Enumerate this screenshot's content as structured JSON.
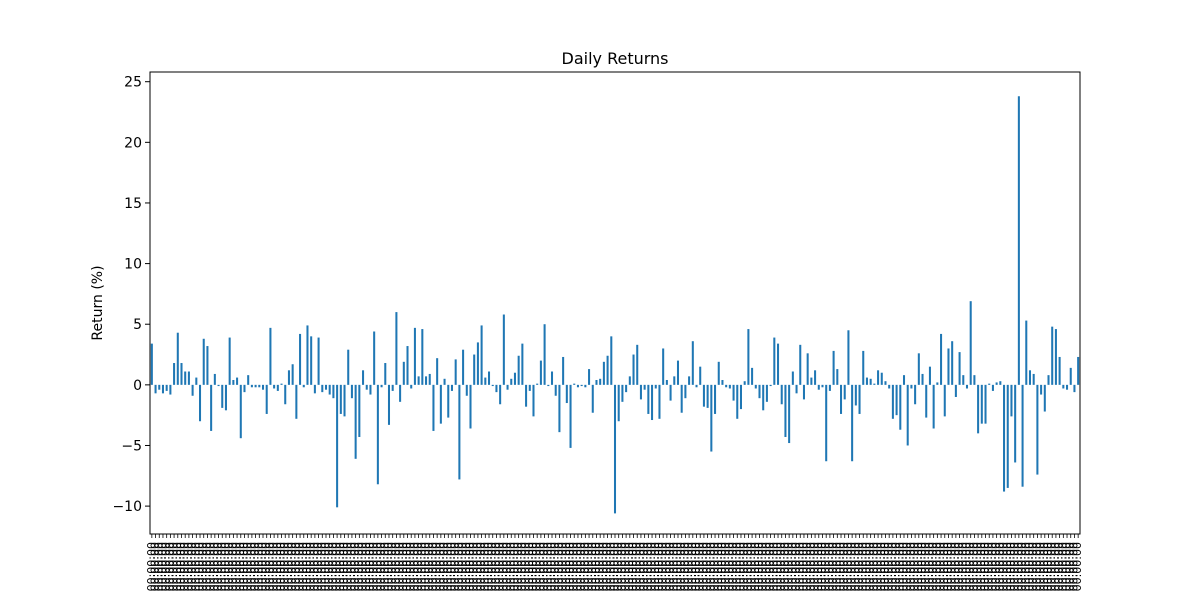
{
  "chart_data": {
    "type": "bar",
    "title": "Daily Returns",
    "xlabel": "",
    "ylabel": "Return (%)",
    "ylim": [
      -12.3,
      25.8
    ],
    "yticks": [
      -10,
      -5,
      0,
      5,
      10,
      15,
      20,
      25
    ],
    "grid": false,
    "bar_color": "#1f77b4",
    "x_tick_label_pattern": "00:00:00",
    "values": [
      3.4,
      -0.7,
      -0.4,
      -0.7,
      -0.5,
      -0.8,
      1.8,
      4.3,
      1.8,
      1.1,
      1.1,
      -0.9,
      0.6,
      -3.0,
      3.8,
      3.2,
      -3.8,
      0.9,
      -0.1,
      -1.9,
      -2.1,
      3.9,
      0.4,
      0.6,
      -4.4,
      -0.6,
      0.8,
      -0.2,
      -0.2,
      -0.2,
      -0.4,
      -2.4,
      4.7,
      -0.3,
      -0.5,
      0.1,
      -1.6,
      1.2,
      1.7,
      -2.8,
      4.2,
      -0.2,
      4.9,
      4.0,
      -0.7,
      3.9,
      -0.6,
      -0.4,
      -0.8,
      -1.1,
      -10.1,
      -2.4,
      -2.6,
      2.9,
      -1.1,
      -6.1,
      -4.3,
      1.2,
      -0.4,
      -0.8,
      4.4,
      -8.2,
      -0.2,
      1.8,
      -3.3,
      -0.5,
      6.0,
      -1.4,
      1.9,
      3.2,
      -0.3,
      4.7,
      0.7,
      4.6,
      0.7,
      0.9,
      -3.8,
      2.2,
      -3.2,
      0.5,
      -2.7,
      -0.5,
      2.1,
      -7.8,
      2.9,
      -0.9,
      -3.6,
      2.5,
      3.5,
      4.9,
      0.6,
      1.1,
      -0.1,
      -0.6,
      -1.6,
      5.8,
      -0.4,
      0.5,
      1.0,
      2.4,
      3.4,
      -1.8,
      -0.5,
      -2.6,
      0.1,
      2.0,
      5.0,
      -0.1,
      1.1,
      -0.9,
      -3.9,
      2.3,
      -1.5,
      -5.2,
      0.1,
      -0.2,
      -0.1,
      -0.2,
      1.3,
      -2.3,
      0.4,
      0.5,
      1.9,
      2.4,
      4.0,
      -10.6,
      -3.0,
      -1.4,
      -0.6,
      0.7,
      2.5,
      3.3,
      -1.2,
      -0.4,
      -2.4,
      -2.9,
      -0.3,
      -2.8,
      3.0,
      0.4,
      -1.3,
      0.7,
      2.0,
      -2.3,
      -1.1,
      0.7,
      3.6,
      -0.2,
      1.5,
      -1.8,
      -1.9,
      -5.5,
      -2.4,
      1.9,
      0.4,
      -0.2,
      -0.3,
      -1.3,
      -2.8,
      -2.0,
      0.3,
      4.6,
      1.4,
      -0.3,
      -1.1,
      -2.1,
      -1.4,
      -0.1,
      3.9,
      3.4,
      -1.6,
      -4.3,
      -4.8,
      1.1,
      -0.7,
      3.3,
      -1.2,
      2.6,
      0.6,
      1.2,
      -0.4,
      -0.2,
      -6.3,
      -0.5,
      2.8,
      1.3,
      -2.4,
      -1.2,
      4.5,
      -6.3,
      -1.7,
      -2.4,
      2.8,
      0.6,
      0.5,
      0.1,
      1.2,
      1.0,
      0.3,
      -0.3,
      -2.8,
      -2.5,
      -3.7,
      0.8,
      -5.0,
      -0.3,
      -1.6,
      2.6,
      0.9,
      -2.7,
      1.5,
      -3.6,
      0.2,
      4.2,
      -2.6,
      3.0,
      3.6,
      -1.0,
      2.7,
      0.8,
      -0.3,
      6.9,
      0.8,
      -4.0,
      -3.2,
      -3.2,
      0.1,
      -0.5,
      0.2,
      0.3,
      -8.8,
      -8.5,
      -2.6,
      -6.4,
      23.8,
      -8.4,
      5.3,
      1.2,
      0.9,
      -7.4,
      -0.8,
      -2.2,
      0.8,
      4.8,
      4.6,
      2.3,
      -0.3,
      -0.4,
      1.4,
      -0.6,
      2.3
    ]
  }
}
